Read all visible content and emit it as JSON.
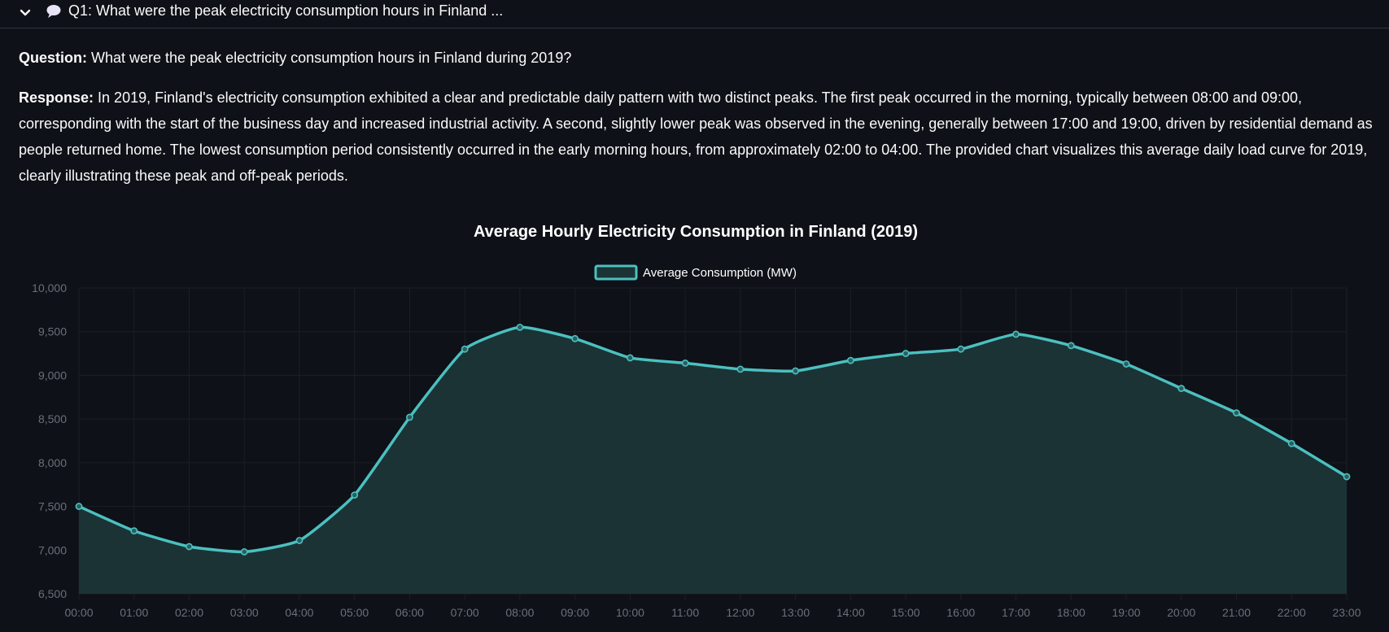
{
  "expander": {
    "title": "Q1: What were the peak electricity consumption hours in Finland ...",
    "icon": "speech-bubble-icon",
    "chevron": "chevron-down-icon"
  },
  "question": {
    "label": "Question:",
    "text": "What were the peak electricity consumption hours in Finland during 2019?"
  },
  "response": {
    "label": "Response:",
    "text": "In 2019, Finland's electricity consumption exhibited a clear and predictable daily pattern with two distinct peaks. The first peak occurred in the morning, typically between 08:00 and 09:00, corresponding with the start of the business day and increased industrial activity. A second, slightly lower peak was observed in the evening, generally between 17:00 and 19:00, driven by residential demand as people returned home. The lowest consumption period consistently occurred in the early morning hours, from approximately 02:00 to 04:00. The provided chart visualizes this average daily load curve for 2019, clearly illustrating these peak and off-peak periods."
  },
  "chart_data": {
    "type": "area",
    "title": "Average Hourly Electricity Consumption in Finland (2019)",
    "categories": [
      "00:00",
      "01:00",
      "02:00",
      "03:00",
      "04:00",
      "05:00",
      "06:00",
      "07:00",
      "08:00",
      "09:00",
      "10:00",
      "11:00",
      "12:00",
      "13:00",
      "14:00",
      "15:00",
      "16:00",
      "17:00",
      "18:00",
      "19:00",
      "20:00",
      "21:00",
      "22:00",
      "23:00"
    ],
    "series": [
      {
        "name": "Average Consumption (MW)",
        "values": [
          7500,
          7220,
          7040,
          6980,
          7110,
          7630,
          8520,
          9300,
          9550,
          9420,
          9200,
          9140,
          9070,
          9050,
          9170,
          9250,
          9300,
          9470,
          9340,
          9130,
          8850,
          8570,
          8220,
          7840
        ]
      }
    ],
    "ylim": [
      6500,
      10000
    ],
    "yticks": [
      "6,500",
      "7,000",
      "7,500",
      "8,000",
      "8,500",
      "9,000",
      "9,500",
      "10,000"
    ],
    "yticks_values": [
      6500,
      7000,
      7500,
      8000,
      8500,
      9000,
      9500,
      10000
    ],
    "legend_position": "top",
    "grid": true,
    "colors": {
      "line": "#4bc0c0",
      "fill": "#1c3335",
      "grid": "#1c1f26",
      "ticks": "#6b6f7a"
    }
  }
}
